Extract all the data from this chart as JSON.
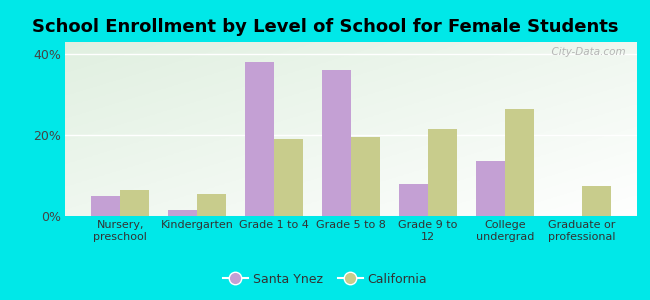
{
  "title": "School Enrollment by Level of School for Female Students",
  "categories": [
    "Nursery,\npreschool",
    "Kindergarten",
    "Grade 1 to 4",
    "Grade 5 to 8",
    "Grade 9 to\n12",
    "College\nundergrad",
    "Graduate or\nprofessional"
  ],
  "santa_ynez": [
    5.0,
    1.5,
    38.0,
    36.0,
    8.0,
    13.5,
    0.0
  ],
  "california": [
    6.5,
    5.5,
    19.0,
    19.5,
    21.5,
    26.5,
    7.5
  ],
  "color_santa_ynez": "#c4a0d4",
  "color_california": "#c8cc8c",
  "background_fig": "#00e8e8",
  "ylabel_ticks": [
    "0%",
    "20%",
    "40%"
  ],
  "yticks": [
    0,
    20,
    40
  ],
  "ylim": [
    0,
    43
  ],
  "watermark": "  City-Data.com",
  "legend_santa_ynez": "Santa Ynez",
  "legend_california": "California",
  "title_fontsize": 13,
  "bar_width": 0.38
}
